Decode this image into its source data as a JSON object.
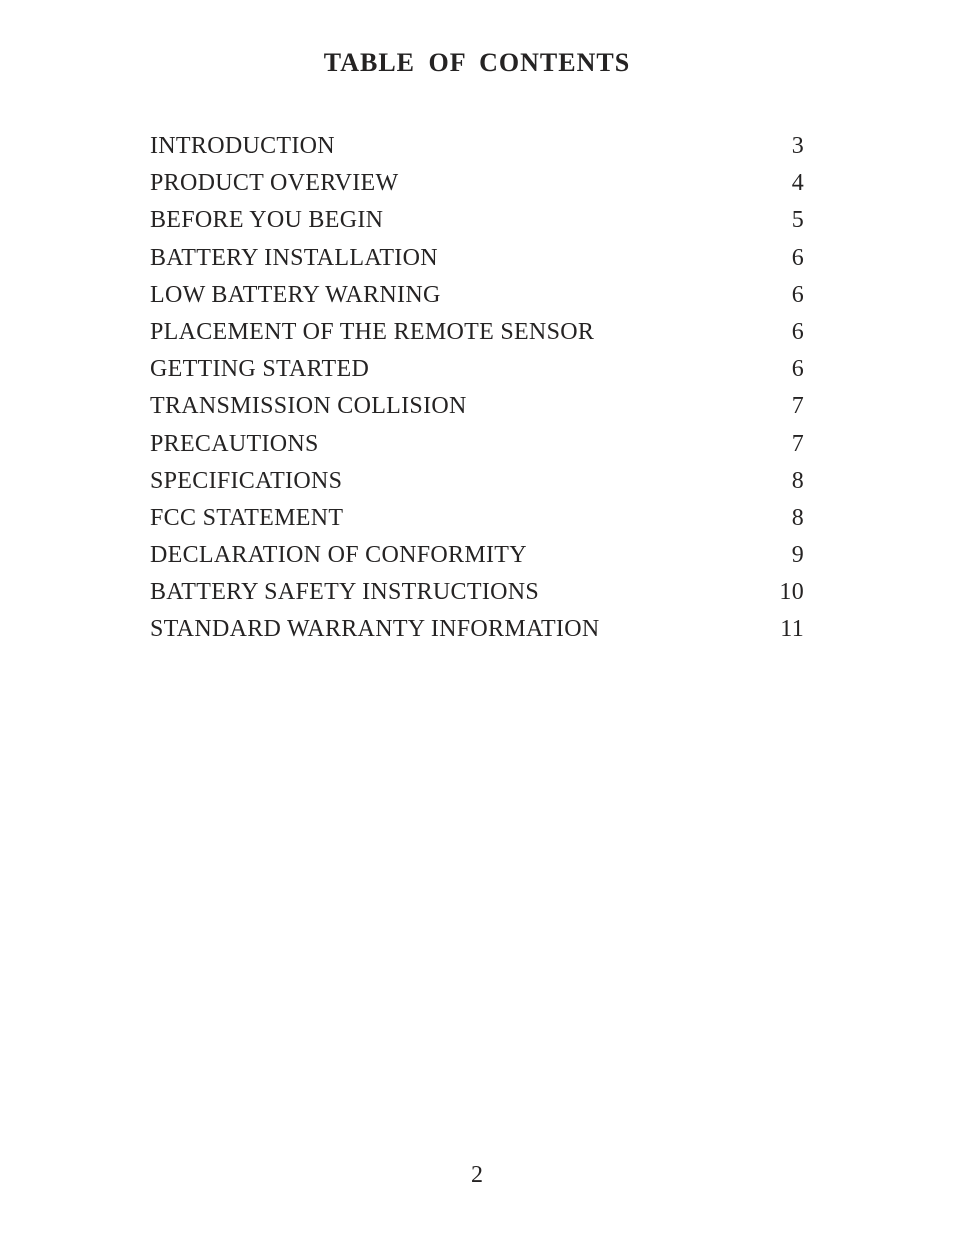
{
  "title": "TABLE OF CONTENTS",
  "entries": [
    {
      "title": "INTRODUCTION",
      "page": "3"
    },
    {
      "title": "PRODUCT OVERVIEW",
      "page": "4"
    },
    {
      "title": "BEFORE YOU BEGIN",
      "page": "5"
    },
    {
      "title": "BATTERY INSTALLATION",
      "page": "6"
    },
    {
      "title": "LOW BATTERY WARNING",
      "page": "6"
    },
    {
      "title": "PLACEMENT OF THE REMOTE SENSOR",
      "page": "6"
    },
    {
      "title": "GETTING STARTED",
      "page": "6"
    },
    {
      "title": "TRANSMISSION COLLISION",
      "page": "7"
    },
    {
      "title": "PRECAUTIONS",
      "page": "7"
    },
    {
      "title": "SPECIFICATIONS",
      "page": "8"
    },
    {
      "title": "FCC STATEMENT",
      "page": "8"
    },
    {
      "title": "DECLARATION OF CONFORMITY",
      "page": "9"
    },
    {
      "title": "BATTERY SAFETY INSTRUCTIONS",
      "page": "10"
    },
    {
      "title": "STANDARD WARRANTY INFORMATION",
      "page": "11"
    }
  ],
  "page_number": "2",
  "text_color": "#252323",
  "background_color": "#ffffff",
  "title_fontsize": 26,
  "entry_fontsize": 24,
  "page_number_fontsize": 24,
  "font_family": "Times New Roman"
}
